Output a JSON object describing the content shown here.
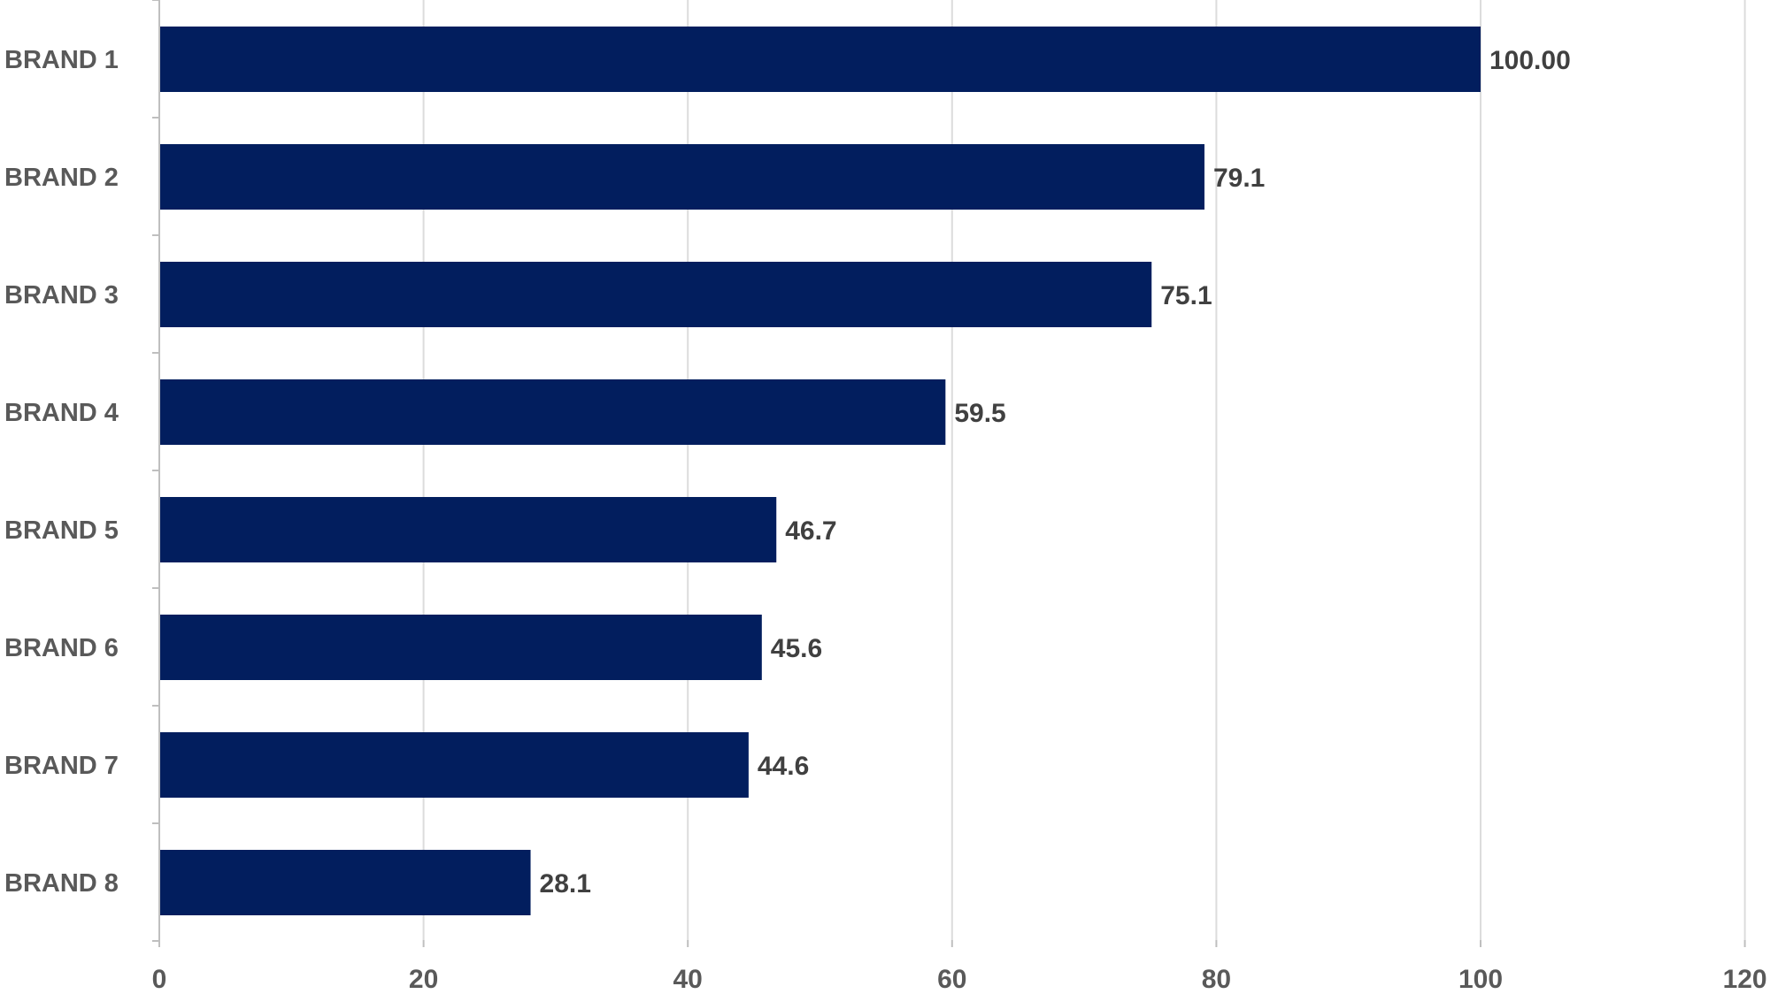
{
  "chart_data": {
    "type": "bar",
    "orientation": "horizontal",
    "categories": [
      "BRAND 1",
      "BRAND 2",
      "BRAND 3",
      "BRAND 4",
      "BRAND 5",
      "BRAND 6",
      "BRAND 7",
      "BRAND 8"
    ],
    "values": [
      100.0,
      79.1,
      75.1,
      59.5,
      46.7,
      45.6,
      44.6,
      28.1
    ],
    "data_labels": [
      "100.00",
      "79.1",
      "75.1",
      "59.5",
      "46.7",
      "45.6",
      "44.6",
      "28.1"
    ],
    "title": "",
    "xlabel": "",
    "ylabel": "",
    "xlim": [
      0,
      120
    ],
    "x_ticks": [
      0,
      20,
      40,
      60,
      80,
      100,
      120
    ],
    "x_tick_labels": [
      "0",
      "20",
      "40",
      "60",
      "80",
      "100",
      "120"
    ],
    "grid": "vertical",
    "legend": "none",
    "colors": {
      "bar": "#021e5e",
      "gridline": "#dcdcdc",
      "axis_text": "#595959",
      "data_label_text": "#404040"
    }
  }
}
